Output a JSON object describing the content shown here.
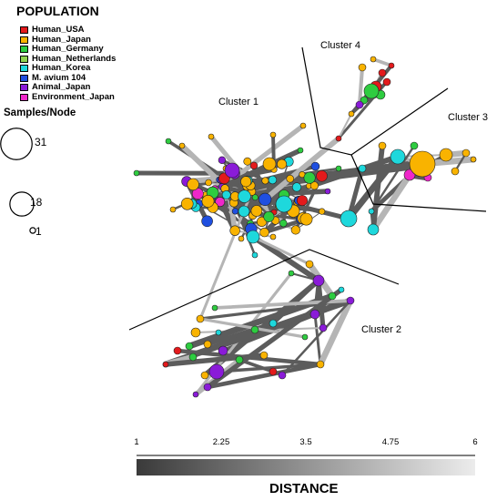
{
  "legend": {
    "title": "POPULATION",
    "entries": [
      {
        "label": "Human_USA",
        "color": "#e31a1c"
      },
      {
        "label": "Human_Japan",
        "color": "#f9b300"
      },
      {
        "label": "Human_Germany",
        "color": "#2ecc40"
      },
      {
        "label": "Human_Netherlands",
        "color": "#8fd14f"
      },
      {
        "label": "Human_Korea",
        "color": "#1ed8dc"
      },
      {
        "label": "M. avium 104",
        "color": "#1f4fe0"
      },
      {
        "label": "Animal_Japan",
        "color": "#8a1bd8"
      },
      {
        "label": "Environment_Japan",
        "color": "#ef27c9"
      }
    ]
  },
  "node_size": {
    "title": "Samples/Node",
    "entries": [
      {
        "label": "31",
        "samples": 31
      },
      {
        "label": "18",
        "samples": 18
      },
      {
        "label": "1",
        "samples": 1
      }
    ]
  },
  "clusters": [
    {
      "label": "Cluster 1"
    },
    {
      "label": "Cluster 2"
    },
    {
      "label": "Cluster 3"
    },
    {
      "label": "Cluster 4"
    }
  ],
  "distance_scale": {
    "title": "DISTANCE",
    "ticks": [
      "1",
      "2.25",
      "3.5",
      "4.75",
      "6"
    ],
    "range": [
      1,
      6
    ]
  }
}
